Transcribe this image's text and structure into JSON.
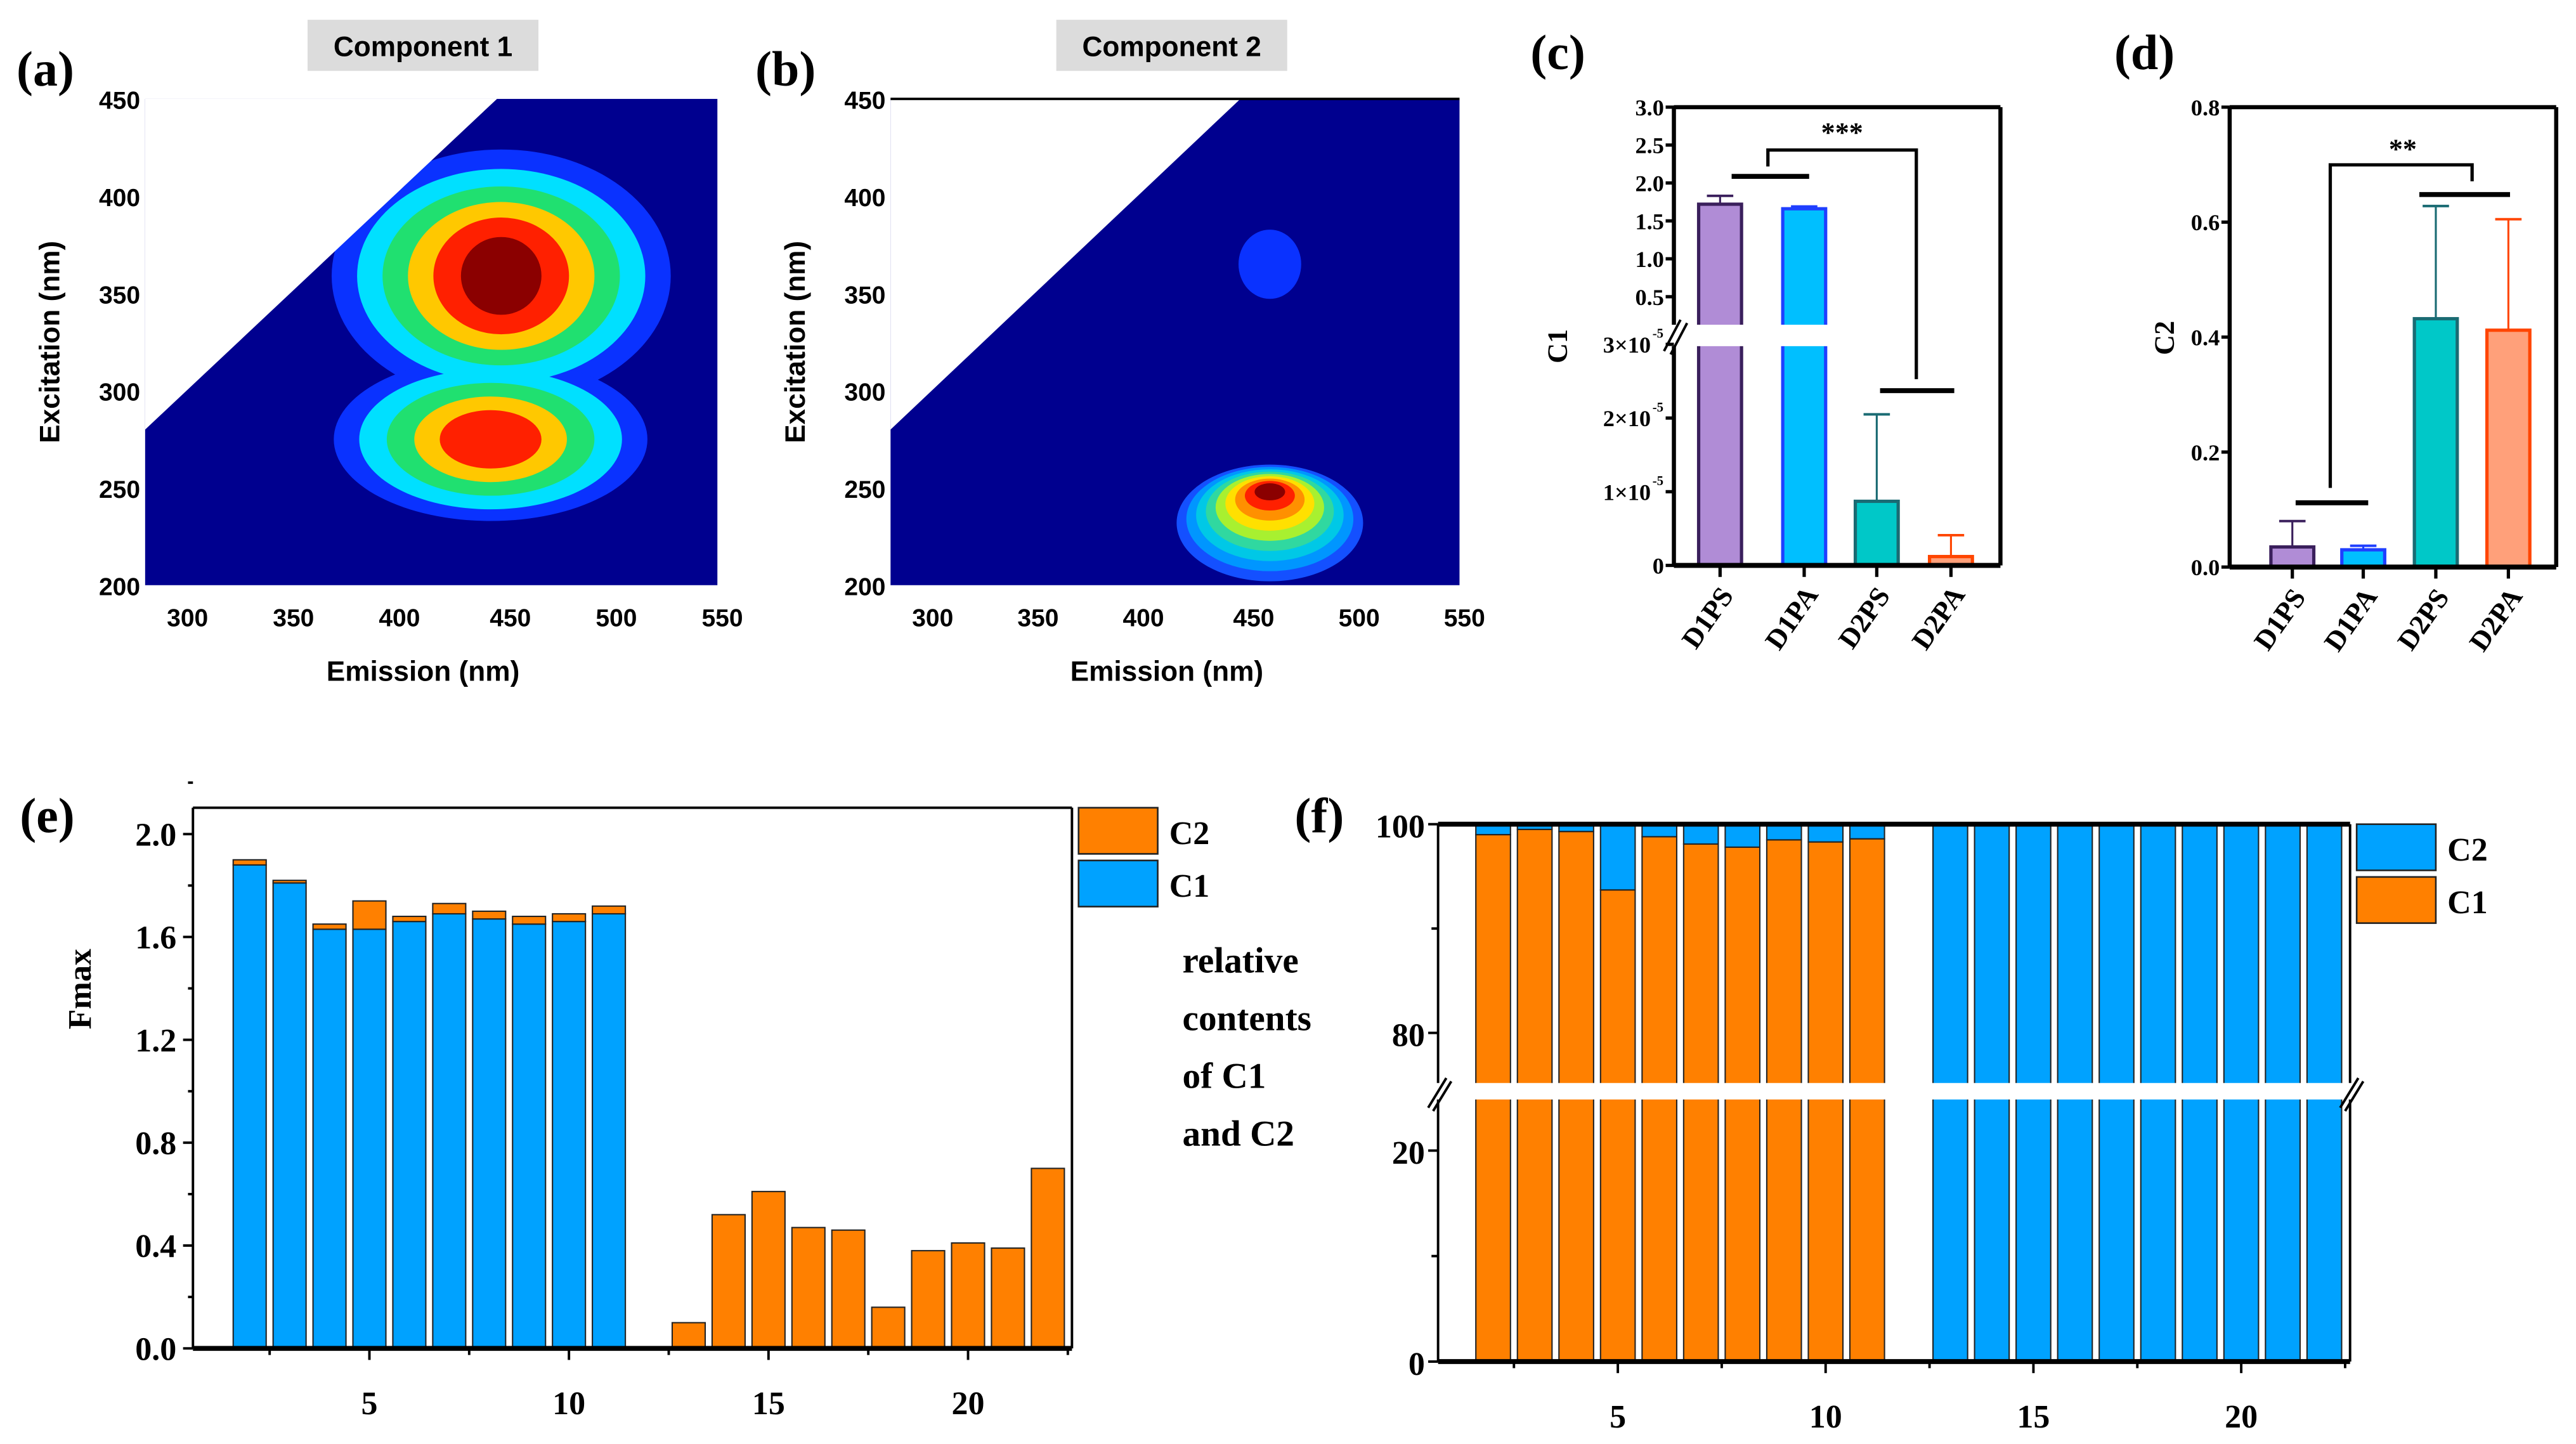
{
  "panels": {
    "a": "(a)",
    "b": "(b)",
    "c": "(c)",
    "d": "(d)",
    "e": "(e)",
    "f": "(f)"
  },
  "annotation": [
    "relative",
    "contents",
    "of C1",
    "and C2"
  ],
  "chart_data": [
    {
      "id": "a",
      "type": "heatmap",
      "title": "Component 1",
      "xlabel": "Emission (nm)",
      "ylabel": "Excitation (nm)",
      "xlim": [
        280,
        550
      ],
      "ylim": [
        200,
        450
      ],
      "xticks": [
        "300",
        "350",
        "400",
        "450",
        "500",
        "550"
      ],
      "yticks": [
        "200",
        "250",
        "300",
        "350",
        "400",
        "450"
      ],
      "peaks": [
        {
          "emission": 445,
          "excitation": 362,
          "level": "max"
        },
        {
          "emission": 440,
          "excitation": 275,
          "level": "secondary"
        }
      ]
    },
    {
      "id": "b",
      "type": "heatmap",
      "title": "Component 2",
      "xlabel": "Emission (nm)",
      "ylabel": "Excitation (nm)",
      "xlim": [
        280,
        550
      ],
      "ylim": [
        200,
        450
      ],
      "xticks": [
        "300",
        "350",
        "400",
        "450",
        "500",
        "550"
      ],
      "yticks": [
        "200",
        "250",
        "300",
        "350",
        "400",
        "450"
      ],
      "peaks": [
        {
          "emission": 460,
          "excitation": 250,
          "level": "max"
        },
        {
          "emission": 460,
          "excitation": 365,
          "level": "minor"
        }
      ]
    },
    {
      "id": "c",
      "type": "bar",
      "ylabel": "C1",
      "categories": [
        "D1PS",
        "D1PA",
        "D2PS",
        "D2PA"
      ],
      "values": [
        1.72,
        1.66,
        8.7e-06,
        1.2e-06
      ],
      "error_upper": [
        1.83,
        1.69,
        2.05e-05,
        4.1e-06
      ],
      "yticks_upper": [
        "0.5",
        "1.0",
        "1.5",
        "2.0",
        "2.5",
        "3.0"
      ],
      "yticks_lower": [
        "0",
        "1×10",
        "2×10",
        "3×10"
      ],
      "ytick_exponent": "-5",
      "axis_break": true,
      "significance": "***",
      "colors": [
        "#b08cd6",
        "#00bfff",
        "#00c8c8",
        "#ffa07a"
      ],
      "edge_colors": [
        "#3a1f5c",
        "#1f3fff",
        "#1a6b73",
        "#ff4500"
      ]
    },
    {
      "id": "d",
      "type": "bar",
      "ylabel": "C2",
      "categories": [
        "D1PS",
        "D1PA",
        "D2PS",
        "D2PA"
      ],
      "values": [
        0.035,
        0.03,
        0.432,
        0.412
      ],
      "error_upper": [
        0.08,
        0.037,
        0.628,
        0.605
      ],
      "yticks": [
        "0.0",
        "0.2",
        "0.4",
        "0.6",
        "0.8"
      ],
      "ylim": [
        0,
        0.8
      ],
      "significance": "**",
      "colors": [
        "#b08cd6",
        "#00bfff",
        "#00c8c8",
        "#ffa07a"
      ],
      "edge_colors": [
        "#3a1f5c",
        "#1f3fff",
        "#1a6b73",
        "#ff4500"
      ]
    },
    {
      "id": "e",
      "type": "bar",
      "stacked": true,
      "ylabel": "Fmax",
      "x": [
        2,
        3,
        4,
        5,
        6,
        7,
        8,
        9,
        10,
        11,
        13,
        14,
        15,
        16,
        17,
        18,
        19,
        20,
        21,
        22
      ],
      "series": [
        {
          "name": "C1",
          "color": "#00a2ff",
          "values": [
            1.88,
            1.81,
            1.63,
            1.63,
            1.66,
            1.69,
            1.67,
            1.65,
            1.66,
            1.69,
            0,
            0,
            0,
            0,
            0,
            0,
            0,
            0,
            0,
            0
          ]
        },
        {
          "name": "C2",
          "color": "#ff8000",
          "values": [
            0.02,
            0.01,
            0.02,
            0.11,
            0.02,
            0.04,
            0.03,
            0.03,
            0.03,
            0.03,
            0.1,
            0.52,
            0.61,
            0.47,
            0.46,
            0.16,
            0.38,
            0.41,
            0.39,
            0.7
          ]
        }
      ],
      "legend": [
        "C2",
        "C1"
      ],
      "xticks": [
        "5",
        "10",
        "15",
        "20"
      ],
      "yticks": [
        "0.0",
        "0.4",
        "0.8",
        "1.2",
        "1.6",
        "2.0"
      ],
      "ylim": [
        0,
        2.1
      ]
    },
    {
      "id": "f",
      "type": "bar",
      "stacked": true,
      "ylabel": "relative contents of C1 and C2",
      "x": [
        2,
        3,
        4,
        5,
        6,
        7,
        8,
        9,
        10,
        11,
        13,
        14,
        15,
        16,
        17,
        18,
        19,
        20,
        21,
        22
      ],
      "series": [
        {
          "name": "C1",
          "color": "#ff8000",
          "values": [
            99.0,
            99.5,
            99.3,
            93.7,
            98.8,
            98.1,
            97.8,
            98.5,
            98.3,
            98.6,
            0,
            0,
            0,
            0,
            0,
            0,
            0,
            0,
            0,
            0
          ]
        },
        {
          "name": "C2",
          "color": "#00a2ff",
          "values": [
            1.0,
            0.5,
            0.7,
            6.3,
            1.2,
            1.9,
            2.2,
            1.5,
            1.7,
            1.4,
            100,
            100,
            100,
            100,
            100,
            100,
            100,
            100,
            100,
            100
          ]
        }
      ],
      "legend": [
        "C2",
        "C1"
      ],
      "xticks": [
        "5",
        "10",
        "15",
        "20"
      ],
      "yticks": [
        "0",
        "20",
        "80",
        "100"
      ],
      "axis_break": true
    }
  ]
}
